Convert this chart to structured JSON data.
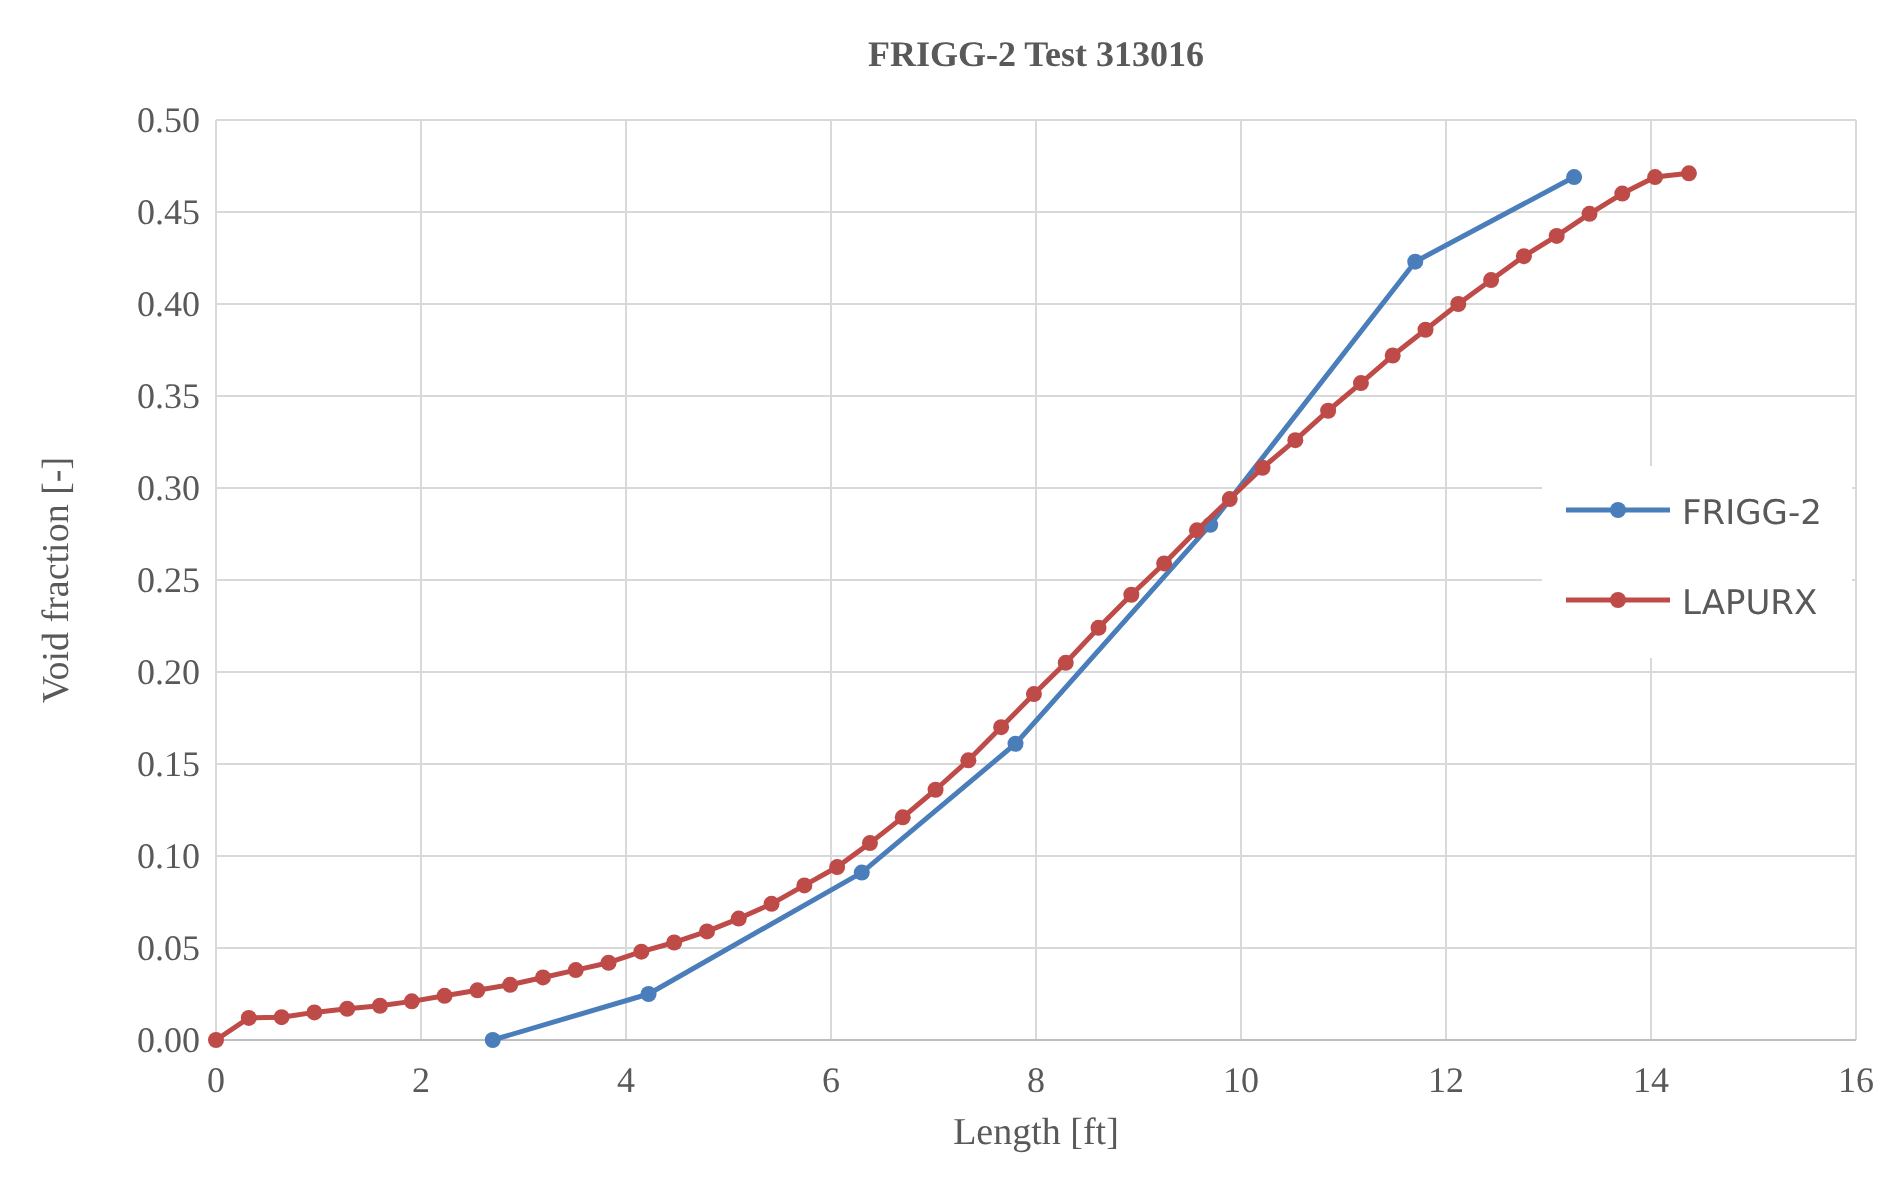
{
  "chart_data": {
    "type": "line",
    "title": "FRIGG-2 Test 313016",
    "xlabel": "Length  [ft]",
    "ylabel": "Void fraction [-]",
    "xlim": [
      0,
      16
    ],
    "xticks": [
      0,
      2,
      4,
      6,
      8,
      10,
      12,
      14,
      16
    ],
    "ylim": [
      0,
      0.5
    ],
    "yticks": [
      {
        "value": 0,
        "label": "0.00"
      },
      {
        "value": 0.05,
        "label": "0.05"
      },
      {
        "value": 0.1,
        "label": "0.10"
      },
      {
        "value": 0.15,
        "label": "0.15"
      },
      {
        "value": 0.2,
        "label": "0.20"
      },
      {
        "value": 0.25,
        "label": "0.25"
      },
      {
        "value": 0.3,
        "label": "0.30"
      },
      {
        "value": 0.35,
        "label": "0.35"
      },
      {
        "value": 0.4,
        "label": "0.40"
      },
      {
        "value": 0.45,
        "label": "0.45"
      },
      {
        "value": 0.5,
        "label": "0.50"
      }
    ],
    "grid": true,
    "legend": "right",
    "marker": "circle",
    "line_style": "solid",
    "series": [
      {
        "name": "FRIGG-2",
        "color": "#4a7ebb",
        "x": [
          2.7,
          4.22,
          6.3,
          7.8,
          9.7,
          11.7,
          13.25
        ],
        "values": [
          0,
          0.025,
          0.091,
          0.161,
          0.28,
          0.423,
          0.469
        ]
      },
      {
        "name": "LAPURX",
        "color": "#be4b48",
        "x": [
          0,
          0.32,
          0.64,
          0.96,
          1.28,
          1.6,
          1.91,
          2.23,
          2.55,
          2.87,
          3.19,
          3.51,
          3.83,
          4.15,
          4.47,
          4.79,
          5.1,
          5.42,
          5.74,
          6.06,
          6.38,
          6.7,
          7.02,
          7.34,
          7.66,
          7.98,
          8.29,
          8.61,
          8.93,
          9.25,
          9.57,
          9.89,
          10.21,
          10.53,
          10.85,
          11.17,
          11.48,
          11.8,
          12.12,
          12.44,
          12.76,
          13.08,
          13.4,
          13.72,
          14.04,
          14.37
        ],
        "values": [
          0,
          0.012,
          0.0124,
          0.015,
          0.017,
          0.0186,
          0.021,
          0.024,
          0.027,
          0.03,
          0.034,
          0.038,
          0.042,
          0.048,
          0.053,
          0.059,
          0.066,
          0.074,
          0.084,
          0.094,
          0.107,
          0.121,
          0.136,
          0.152,
          0.17,
          0.188,
          0.205,
          0.224,
          0.242,
          0.259,
          0.277,
          0.294,
          0.311,
          0.326,
          0.342,
          0.357,
          0.372,
          0.386,
          0.4,
          0.413,
          0.426,
          0.437,
          0.449,
          0.46,
          0.469,
          0.471
        ]
      }
    ]
  }
}
